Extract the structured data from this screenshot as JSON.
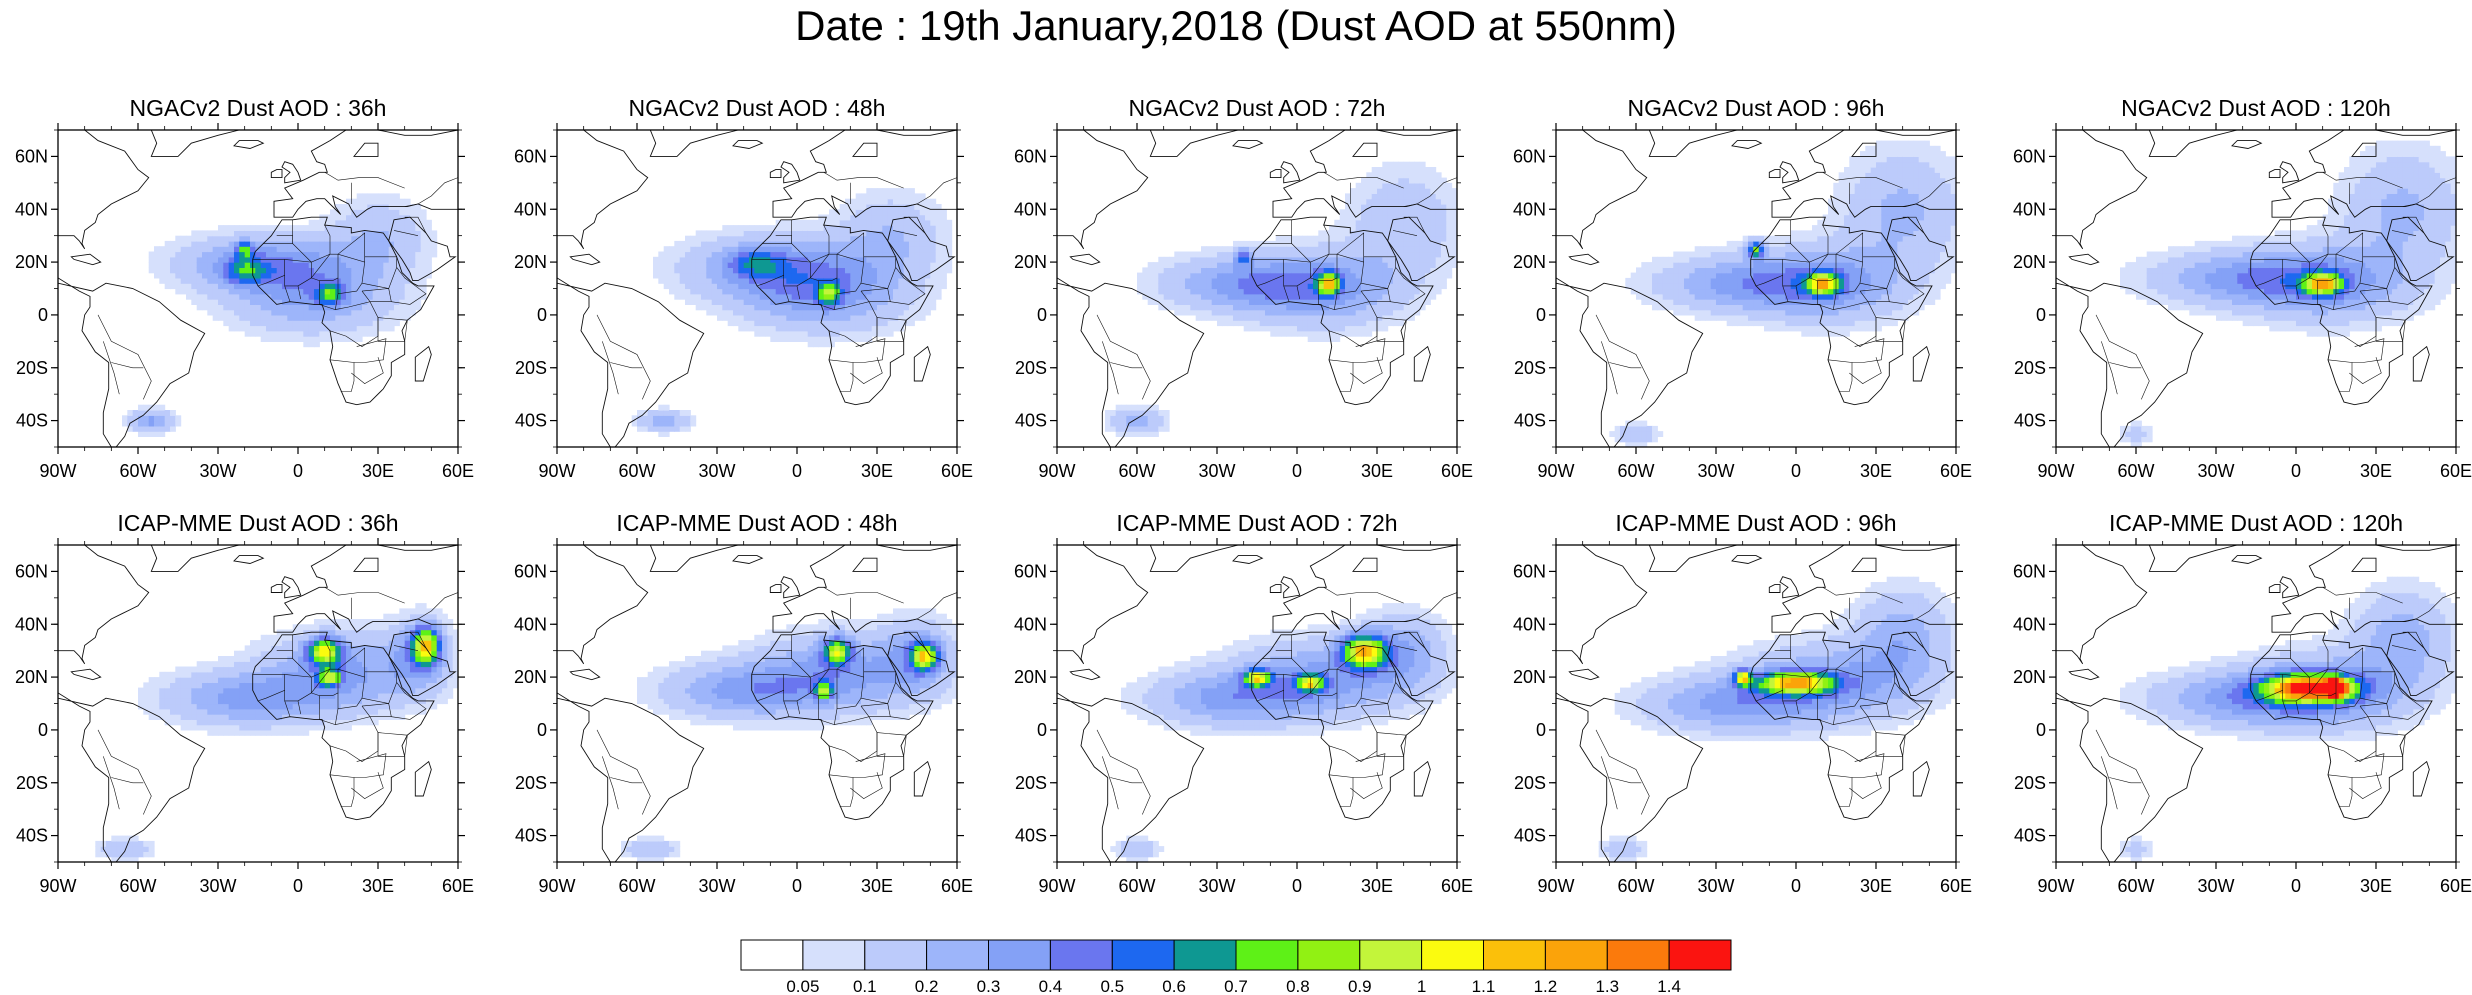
{
  "title": "Date : 19th January,2018 (Dust AOD at 550nm)",
  "lat_ticks": [
    "60N",
    "40N",
    "20N",
    "0",
    "20S",
    "40S"
  ],
  "lat_values": [
    60,
    40,
    20,
    0,
    -20,
    -40
  ],
  "lon_ticks": [
    "90W",
    "60W",
    "30W",
    "0",
    "30E",
    "60E"
  ],
  "lon_values": [
    -90,
    -60,
    -30,
    0,
    30,
    60
  ],
  "extent": {
    "lon": [
      -90,
      60
    ],
    "lat": [
      -50,
      70
    ]
  },
  "panels": [
    {
      "title": "NGACv2 Dust AOD : 36h",
      "model": "NGACv2",
      "lead": 36,
      "plumes": [
        [
          -15,
          20,
          30,
          10,
          1
        ],
        [
          5,
          8,
          30,
          14,
          1
        ],
        [
          30,
          30,
          18,
          14,
          0.6
        ],
        [
          -55,
          -40,
          8,
          4,
          1
        ]
      ],
      "peaks": [
        [
          -20,
          17,
          8,
          5,
          0.35
        ],
        [
          -20,
          25,
          3,
          3,
          0.5
        ],
        [
          12,
          8,
          5,
          4,
          0.5
        ]
      ]
    },
    {
      "title": "NGACv2 Dust AOD : 48h",
      "model": "NGACv2",
      "lead": 48,
      "plumes": [
        [
          -10,
          18,
          32,
          12,
          1
        ],
        [
          10,
          8,
          30,
          14,
          1
        ],
        [
          35,
          30,
          20,
          16,
          0.6
        ],
        [
          -50,
          -40,
          10,
          4,
          0.8
        ]
      ],
      "peaks": [
        [
          -15,
          20,
          10,
          5,
          0.3
        ],
        [
          12,
          8,
          4,
          4,
          0.55
        ]
      ]
    },
    {
      "title": "NGACv2 Dust AOD : 72h",
      "model": "NGACv2",
      "lead": 72,
      "plumes": [
        [
          -20,
          12,
          30,
          10,
          1
        ],
        [
          10,
          10,
          28,
          14,
          1
        ],
        [
          40,
          35,
          20,
          20,
          0.6
        ],
        [
          -60,
          -40,
          10,
          5,
          0.8
        ]
      ],
      "peaks": [
        [
          12,
          12,
          4,
          4,
          0.85
        ],
        [
          -20,
          22,
          3,
          3,
          0.4
        ]
      ]
    },
    {
      "title": "NGACv2 Dust AOD : 96h",
      "model": "NGACv2",
      "lead": 96,
      "plumes": [
        [
          -20,
          12,
          32,
          10,
          1
        ],
        [
          12,
          12,
          28,
          14,
          1
        ],
        [
          40,
          40,
          22,
          22,
          0.7
        ],
        [
          -60,
          -45,
          8,
          4,
          0.6
        ]
      ],
      "peaks": [
        [
          10,
          12,
          6,
          4,
          0.85
        ],
        [
          -15,
          25,
          3,
          3,
          0.7
        ]
      ]
    },
    {
      "title": "NGACv2 Dust AOD : 120h",
      "model": "NGACv2",
      "lead": 120,
      "plumes": [
        [
          -20,
          14,
          34,
          10,
          1
        ],
        [
          12,
          12,
          30,
          14,
          1
        ],
        [
          40,
          40,
          22,
          22,
          0.7
        ],
        [
          -60,
          -45,
          6,
          4,
          0.5
        ]
      ],
      "peaks": [
        [
          10,
          12,
          7,
          4,
          0.85
        ]
      ]
    },
    {
      "title": "ICAP-MME Dust AOD : 36h",
      "model": "ICAP-MME",
      "lead": 36,
      "plumes": [
        [
          -20,
          12,
          30,
          10,
          1
        ],
        [
          15,
          22,
          28,
          14,
          1
        ],
        [
          45,
          28,
          12,
          14,
          0.8
        ],
        [
          -65,
          -45,
          10,
          4,
          0.6
        ]
      ],
      "peaks": [
        [
          10,
          30,
          6,
          5,
          0.9
        ],
        [
          48,
          32,
          5,
          7,
          0.95
        ],
        [
          12,
          20,
          4,
          3,
          0.7
        ]
      ]
    },
    {
      "title": "ICAP-MME Dust AOD : 48h",
      "model": "ICAP-MME",
      "lead": 48,
      "plumes": [
        [
          -20,
          15,
          30,
          10,
          1
        ],
        [
          15,
          22,
          30,
          14,
          1
        ],
        [
          45,
          28,
          14,
          14,
          0.8
        ],
        [
          -55,
          -45,
          10,
          4,
          0.6
        ]
      ],
      "peaks": [
        [
          15,
          30,
          5,
          5,
          0.8
        ],
        [
          48,
          28,
          5,
          5,
          0.85
        ],
        [
          10,
          15,
          3,
          3,
          0.7
        ]
      ]
    },
    {
      "title": "ICAP-MME Dust AOD : 72h",
      "model": "ICAP-MME",
      "lead": 72,
      "plumes": [
        [
          -25,
          12,
          30,
          10,
          1
        ],
        [
          10,
          20,
          32,
          14,
          1
        ],
        [
          40,
          30,
          15,
          14,
          0.8
        ],
        [
          -60,
          -45,
          8,
          4,
          0.6
        ]
      ],
      "peaks": [
        [
          25,
          30,
          8,
          6,
          1.0
        ],
        [
          -15,
          20,
          5,
          3,
          0.85
        ],
        [
          5,
          18,
          5,
          3,
          0.8
        ]
      ]
    },
    {
      "title": "ICAP-MME Dust AOD : 96h",
      "model": "ICAP-MME",
      "lead": 96,
      "plumes": [
        [
          -25,
          10,
          32,
          10,
          1
        ],
        [
          12,
          18,
          32,
          14,
          1
        ],
        [
          40,
          35,
          18,
          18,
          0.8
        ],
        [
          -65,
          -45,
          8,
          4,
          0.6
        ]
      ],
      "peaks": [
        [
          0,
          18,
          14,
          4,
          0.95
        ],
        [
          -20,
          20,
          3,
          3,
          0.9
        ]
      ]
    },
    {
      "title": "ICAP-MME Dust AOD : 120h",
      "model": "ICAP-MME",
      "lead": 120,
      "plumes": [
        [
          -20,
          12,
          34,
          10,
          1
        ],
        [
          12,
          15,
          30,
          14,
          1
        ],
        [
          40,
          35,
          18,
          18,
          0.8
        ],
        [
          -60,
          -45,
          6,
          4,
          0.5
        ]
      ],
      "peaks": [
        [
          5,
          16,
          16,
          5,
          1.2
        ],
        [
          15,
          16,
          4,
          3,
          1.4
        ]
      ]
    }
  ],
  "colorbar": {
    "colors": [
      "#ffffff",
      "#d6e0fc",
      "#bccbfb",
      "#9db5fa",
      "#84a1f6",
      "#6a76ef",
      "#1d68f0",
      "#0e9892",
      "#5ef117",
      "#91f113",
      "#c3f53a",
      "#fbfb0f",
      "#fbc00a",
      "#fba30a",
      "#fb7a0c",
      "#fb1410"
    ],
    "labels": [
      "0.05",
      "0.1",
      "0.2",
      "0.3",
      "0.4",
      "0.5",
      "0.6",
      "0.7",
      "0.8",
      "0.9",
      "1",
      "1.1",
      "1.2",
      "1.3",
      "1.4"
    ],
    "levels": [
      0.05,
      0.1,
      0.2,
      0.3,
      0.4,
      0.5,
      0.6,
      0.7,
      0.8,
      0.9,
      1,
      1.1,
      1.2,
      1.3,
      1.4
    ]
  }
}
